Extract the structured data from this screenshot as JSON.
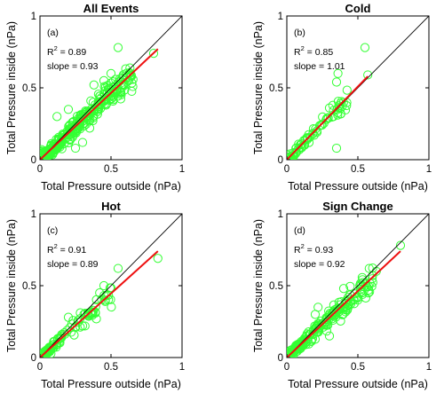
{
  "chart_data": [
    {
      "type": "scatter",
      "title": "All Events",
      "panel_label": "(a)",
      "r2_label": "R",
      "r2_sup": "2",
      "r2_value": " = 0.89",
      "slope_text": "slope = 0.93",
      "r2": 0.89,
      "slope": 0.93,
      "xlabel": "Total Pressure outside (nPa)",
      "ylabel": "Total Pressure inside (nPa)",
      "xlim": [
        0,
        1
      ],
      "ylim": [
        0,
        1
      ],
      "xticks": [
        "0",
        "0.5",
        "1"
      ],
      "yticks": [
        "0",
        "0.5",
        "1"
      ],
      "reference_line": "y = x",
      "fit_line": [
        [
          0,
          0
        ],
        [
          0.83,
          0.77
        ]
      ],
      "outliers": [
        [
          0.55,
          0.78
        ],
        [
          0.38,
          0.52
        ],
        [
          0.5,
          0.6
        ],
        [
          0.45,
          0.55
        ],
        [
          0.6,
          0.52
        ],
        [
          0.8,
          0.74
        ],
        [
          0.25,
          0.08
        ],
        [
          0.3,
          0.12
        ],
        [
          0.42,
          0.42
        ],
        [
          0.2,
          0.35
        ],
        [
          0.12,
          0.3
        ],
        [
          0.35,
          0.22
        ]
      ],
      "n_points": 380,
      "spread": 0.045,
      "max_x": 0.65,
      "seed": 11
    },
    {
      "type": "scatter",
      "title": "Cold",
      "panel_label": "(b)",
      "r2_label": "R",
      "r2_sup": "2",
      "r2_value": " = 0.85",
      "slope_text": "slope = 1.01",
      "r2": 0.85,
      "slope": 1.01,
      "xlabel": "Total Pressure outside (nPa)",
      "ylabel": "Total Pressure inside (nPa)",
      "xlim": [
        0,
        1
      ],
      "ylim": [
        0,
        1
      ],
      "xticks": [
        "0",
        "0.5",
        "1"
      ],
      "yticks": [
        "0",
        "0.5",
        "1"
      ],
      "reference_line": "y = x",
      "fit_line": [
        [
          0,
          0
        ],
        [
          0.57,
          0.58
        ]
      ],
      "outliers": [
        [
          0.55,
          0.78
        ],
        [
          0.35,
          0.54
        ],
        [
          0.36,
          0.6
        ],
        [
          0.35,
          0.08
        ],
        [
          0.57,
          0.59
        ],
        [
          0.3,
          0.36
        ]
      ],
      "n_points": 90,
      "spread": 0.03,
      "max_x": 0.42,
      "seed": 23
    },
    {
      "type": "scatter",
      "title": "Hot",
      "panel_label": "(c)",
      "r2_label": "R",
      "r2_sup": "2",
      "r2_value": " = 0.91",
      "slope_text": "slope = 0.89",
      "r2": 0.91,
      "slope": 0.89,
      "xlabel": "Total Pressure outside (nPa)",
      "ylabel": "Total Pressure inside (nPa)",
      "xlim": [
        0,
        1
      ],
      "ylim": [
        0,
        1
      ],
      "xticks": [
        "0",
        "0.5",
        "1"
      ],
      "yticks": [
        "0",
        "0.5",
        "1"
      ],
      "reference_line": "y = x",
      "fit_line": [
        [
          0,
          0
        ],
        [
          0.83,
          0.74
        ]
      ],
      "outliers": [
        [
          0.55,
          0.62
        ],
        [
          0.83,
          0.69
        ],
        [
          0.42,
          0.45
        ],
        [
          0.3,
          0.22
        ],
        [
          0.45,
          0.5
        ],
        [
          0.2,
          0.28
        ]
      ],
      "n_points": 110,
      "spread": 0.035,
      "max_x": 0.5,
      "seed": 37
    },
    {
      "type": "scatter",
      "title": "Sign Change",
      "panel_label": "(d)",
      "r2_label": "R",
      "r2_sup": "2",
      "r2_value": " = 0.93",
      "slope_text": "slope = 0.92",
      "r2": 0.93,
      "slope": 0.92,
      "xlabel": "Total Pressure outside (nPa)",
      "ylabel": "Total Pressure inside (nPa)",
      "xlim": [
        0,
        1
      ],
      "ylim": [
        0,
        1
      ],
      "xticks": [
        "0",
        "0.5",
        "1"
      ],
      "yticks": [
        "0",
        "0.5",
        "1"
      ],
      "reference_line": "y = x",
      "fit_line": [
        [
          0,
          0
        ],
        [
          0.8,
          0.74
        ]
      ],
      "outliers": [
        [
          0.8,
          0.78
        ],
        [
          0.58,
          0.62
        ],
        [
          0.22,
          0.35
        ],
        [
          0.3,
          0.15
        ],
        [
          0.4,
          0.48
        ],
        [
          0.63,
          0.6
        ],
        [
          0.2,
          0.3
        ],
        [
          0.5,
          0.4
        ]
      ],
      "n_points": 260,
      "spread": 0.035,
      "max_x": 0.6,
      "seed": 53
    }
  ],
  "colors": {
    "marker": "#33ff33",
    "fit_line": "#ee1111",
    "reference_line": "#000000"
  }
}
